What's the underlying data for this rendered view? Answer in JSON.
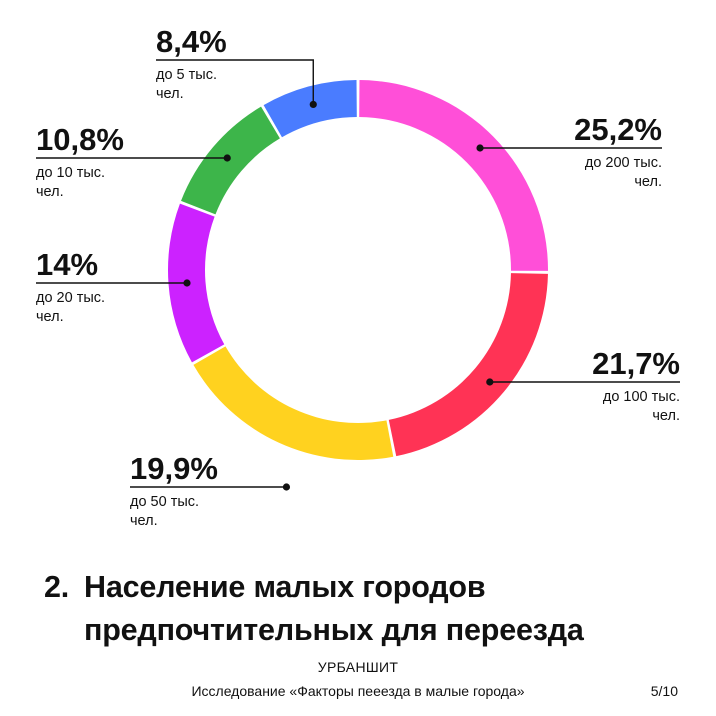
{
  "chart_data": {
    "type": "pie",
    "donut": true,
    "slices": [
      {
        "value": 25.2,
        "label": "25,2%",
        "sub1": "до 200 тыс.",
        "sub2": "чел.",
        "color": "#ff4fd8"
      },
      {
        "value": 21.7,
        "label": "21,7%",
        "sub1": "до 100 тыс.",
        "sub2": "чел.",
        "color": "#ff3355"
      },
      {
        "value": 19.9,
        "label": "19,9%",
        "sub1": "до 50 тыс.",
        "sub2": "чел.",
        "color": "#ffd21f"
      },
      {
        "value": 14,
        "label": "14%",
        "sub1": "до 20 тыс.",
        "sub2": "чел.",
        "color": "#cc22ff"
      },
      {
        "value": 10.8,
        "label": "10,8%",
        "sub1": "до 10 тыс.",
        "sub2": "чел.",
        "color": "#3db54a"
      },
      {
        "value": 8.4,
        "label": "8,4%",
        "sub1": "до 5 тыс.",
        "sub2": "чел.",
        "color": "#4a7cff"
      }
    ]
  },
  "title": {
    "number": "2.",
    "line1": "Население малых городов",
    "line2": "предпочтительных для переезда"
  },
  "footer": {
    "brand": "УРБАНШИТ",
    "study": "Исследование «Факторы пееезда в малые города»",
    "page": "5/10"
  }
}
